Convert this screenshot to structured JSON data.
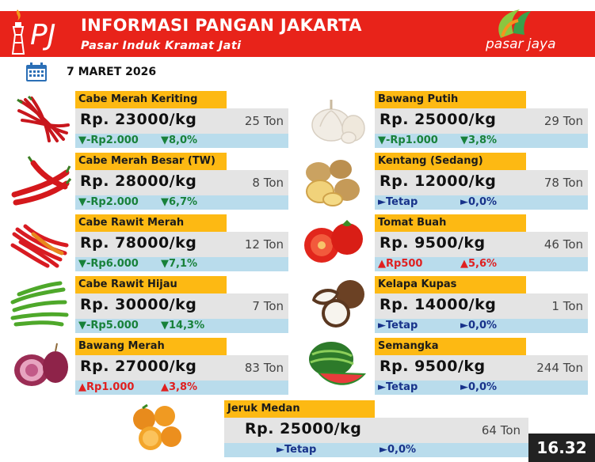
{
  "header": {
    "title": "INFORMASI PANGAN JAKARTA",
    "subtitle": "Pasar Induk Kramat Jati",
    "left_logo_text": "PJ",
    "right_logo_text": "pasar jaya"
  },
  "date": "7 MARET 2026",
  "clock": "16.32",
  "colors": {
    "header_red": "#e8231a",
    "label_yellow": "#fdb913",
    "down_green": "#18813a",
    "up_red": "#e02020",
    "flat_blue": "#17328a"
  },
  "items": [
    {
      "name": "Cabe Merah Keriting",
      "price": "Rp. 23000/kg",
      "stock": "25 Ton",
      "change_amount": "▼-Rp2.000",
      "change_percent": "▼8,0%",
      "trend": "down",
      "icon": "red-chili-icon"
    },
    {
      "name": "Cabe Merah Besar (TW)",
      "price": "Rp. 28000/kg",
      "stock": "8 Ton",
      "change_amount": "▼-Rp2.000",
      "change_percent": "▼6,7%",
      "trend": "down",
      "icon": "big-red-chili-icon"
    },
    {
      "name": "Cabe Rawit Merah",
      "price": "Rp. 78000/kg",
      "stock": "12 Ton",
      "change_amount": "▼-Rp6.000",
      "change_percent": "▼7,1%",
      "trend": "down",
      "icon": "bird-eye-chili-icon"
    },
    {
      "name": "Cabe Rawit Hijau",
      "price": "Rp. 30000/kg",
      "stock": "7 Ton",
      "change_amount": "▼-Rp5.000",
      "change_percent": "▼14,3%",
      "trend": "down",
      "icon": "green-chili-icon"
    },
    {
      "name": "Bawang Merah",
      "price": "Rp. 27000/kg",
      "stock": "83 Ton",
      "change_amount": "▲Rp1.000",
      "change_percent": "▲3,8%",
      "trend": "up",
      "icon": "shallot-icon"
    },
    {
      "name": "Bawang Putih",
      "price": "Rp. 25000/kg",
      "stock": "29 Ton",
      "change_amount": "▼-Rp1.000",
      "change_percent": "▼3,8%",
      "trend": "down",
      "icon": "garlic-icon"
    },
    {
      "name": "Kentang (Sedang)",
      "price": "Rp. 12000/kg",
      "stock": "78 Ton",
      "change_amount": "►Tetap",
      "change_percent": "►0,0%",
      "trend": "flat",
      "icon": "potato-icon"
    },
    {
      "name": "Tomat Buah",
      "price": "Rp. 9500/kg",
      "stock": "46 Ton",
      "change_amount": "▲Rp500",
      "change_percent": "▲5,6%",
      "trend": "up",
      "icon": "tomato-icon"
    },
    {
      "name": "Kelapa Kupas",
      "price": "Rp. 14000/kg",
      "stock": "1 Ton",
      "change_amount": "►Tetap",
      "change_percent": "►0,0%",
      "trend": "flat",
      "icon": "coconut-icon"
    },
    {
      "name": "Semangka",
      "price": "Rp. 9500/kg",
      "stock": "244 Ton",
      "change_amount": "►Tetap",
      "change_percent": "►0,0%",
      "trend": "flat",
      "icon": "watermelon-icon"
    },
    {
      "name": "Jeruk Medan",
      "price": "Rp. 25000/kg",
      "stock": "64 Ton",
      "change_amount": "►Tetap",
      "change_percent": "►0,0%",
      "trend": "flat",
      "icon": "orange-icon"
    }
  ]
}
